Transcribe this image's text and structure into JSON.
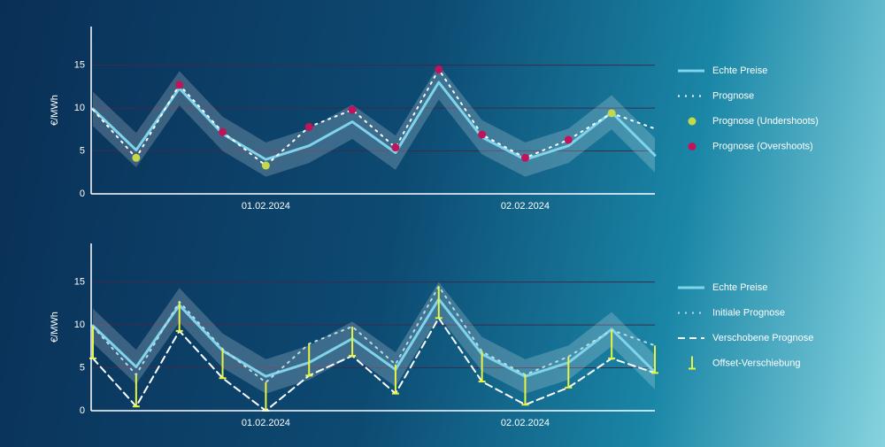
{
  "chart_data": [
    {
      "type": "line",
      "ylabel": "€/MWh",
      "categories": [
        null,
        null,
        null,
        null,
        "01.02.2024",
        null,
        null,
        null,
        null,
        null,
        "02.02.2024",
        null,
        null,
        null
      ],
      "ylim": [
        0,
        19.5
      ],
      "yticks": [
        0,
        5,
        10,
        15
      ],
      "grid": true,
      "series": [
        {
          "name": "Echte Preise",
          "color": "#7fd3ea",
          "style": "solid",
          "band": 2,
          "values": [
            9.9,
            5.1,
            12.3,
            7.0,
            4.0,
            5.6,
            8.4,
            4.8,
            13.0,
            6.6,
            4.0,
            5.6,
            9.5,
            4.5
          ]
        },
        {
          "name": "Prognose",
          "color": "#ffffff",
          "style": "dotted",
          "values": [
            9.8,
            4.2,
            12.7,
            7.2,
            3.3,
            7.8,
            9.8,
            5.4,
            14.5,
            6.9,
            4.2,
            6.3,
            9.4,
            7.6
          ]
        },
        {
          "name": "Prognose (Undershoots)",
          "color": "#c3d94a",
          "style": "marker",
          "values": [
            null,
            4.2,
            null,
            null,
            3.3,
            null,
            null,
            null,
            null,
            null,
            null,
            null,
            9.4,
            null
          ]
        },
        {
          "name": "Prognose (Overshoots)",
          "color": "#c0145a",
          "style": "marker",
          "values": [
            null,
            null,
            12.7,
            7.2,
            null,
            7.8,
            9.8,
            5.4,
            14.5,
            6.9,
            4.2,
            6.3,
            null,
            null
          ]
        }
      ]
    },
    {
      "type": "line",
      "ylabel": "€/MWh",
      "categories": [
        null,
        null,
        null,
        null,
        "01.02.2024",
        null,
        null,
        null,
        null,
        null,
        "02.02.2024",
        null,
        null,
        null
      ],
      "ylim": [
        0,
        19.5
      ],
      "yticks": [
        0,
        5,
        10,
        15
      ],
      "grid": true,
      "series": [
        {
          "name": "Echte Preise",
          "color": "#7fd3ea",
          "style": "solid",
          "band": 2,
          "values": [
            9.9,
            5.1,
            12.3,
            7.0,
            4.0,
            5.6,
            8.4,
            4.8,
            13.0,
            6.6,
            4.0,
            5.6,
            9.5,
            4.5
          ]
        },
        {
          "name": "Initiale Prognose",
          "color": "#b7dbe6",
          "style": "dotted",
          "values": [
            9.8,
            4.2,
            12.7,
            7.2,
            3.3,
            7.8,
            9.8,
            5.4,
            14.5,
            6.9,
            4.2,
            6.3,
            9.4,
            7.6
          ]
        },
        {
          "name": "Verschobene Prognose",
          "color": "#ffffff",
          "style": "dashed",
          "values": [
            6.1,
            0.5,
            9.3,
            3.8,
            0.0,
            4.1,
            6.4,
            2.0,
            10.8,
            3.4,
            0.7,
            2.7,
            6.1,
            4.4
          ]
        },
        {
          "name": "Offset-Verschiebung",
          "color": "#e6f542",
          "style": "offset"
        }
      ]
    }
  ]
}
